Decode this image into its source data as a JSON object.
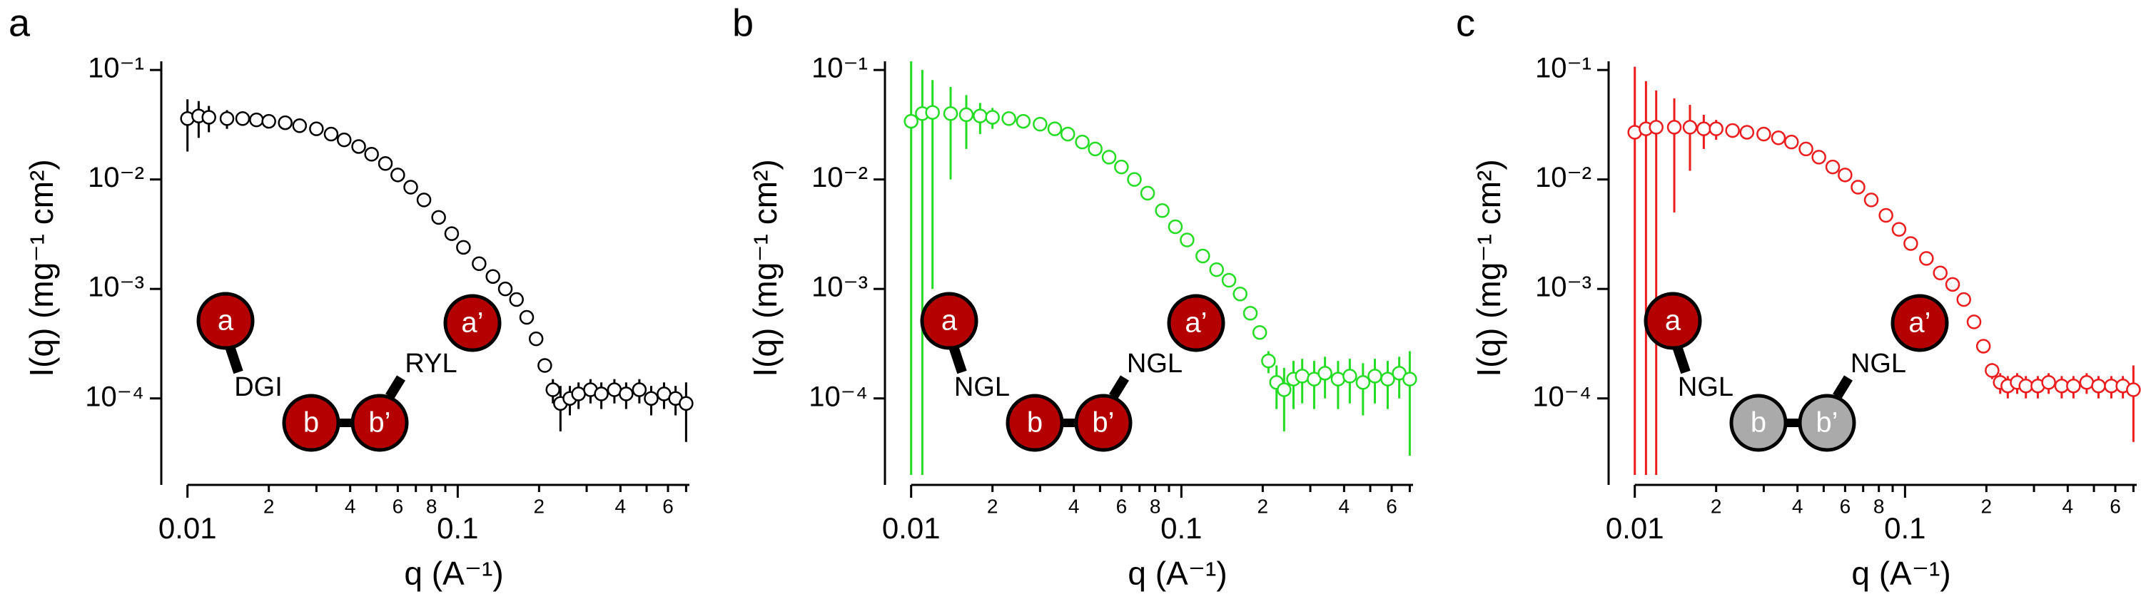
{
  "chart_data": [
    {
      "type": "scatter",
      "panel_label": "a",
      "xlabel": "q (A⁻¹)",
      "ylabel": "I(q) (mg⁻¹ cm²)",
      "color": "#000000",
      "log_x": true,
      "log_y": true,
      "x": [
        0.01,
        0.011,
        0.012,
        0.014,
        0.016,
        0.018,
        0.02,
        0.023,
        0.026,
        0.03,
        0.034,
        0.038,
        0.043,
        0.048,
        0.054,
        0.06,
        0.067,
        0.075,
        0.085,
        0.095,
        0.105,
        0.12,
        0.135,
        0.15,
        0.165,
        0.18,
        0.195,
        0.21,
        0.225,
        0.24,
        0.26,
        0.28,
        0.31,
        0.34,
        0.38,
        0.42,
        0.47,
        0.52,
        0.58,
        0.64,
        0.7
      ],
      "values": [
        0.036,
        0.038,
        0.037,
        0.036,
        0.036,
        0.035,
        0.034,
        0.033,
        0.031,
        0.029,
        0.026,
        0.023,
        0.02,
        0.017,
        0.014,
        0.011,
        0.0085,
        0.0065,
        0.0045,
        0.0032,
        0.0024,
        0.0017,
        0.0013,
        0.001,
        0.0008,
        0.00055,
        0.00035,
        0.0002,
        0.00012,
        9e-05,
        0.0001,
        0.00011,
        0.00012,
        0.00011,
        0.00012,
        0.00011,
        0.00012,
        0.0001,
        0.00011,
        0.0001,
        9e-05
      ],
      "errors": [
        0.018,
        0.014,
        0.01,
        0.007,
        0.005,
        0.003,
        0.002,
        0.001,
        0,
        0,
        0,
        0,
        0,
        0,
        0,
        0,
        0,
        0,
        0,
        0,
        0,
        0,
        0,
        0,
        0,
        0,
        0,
        2e-05,
        3e-05,
        4e-05,
        3e-05,
        3e-05,
        3e-05,
        3e-05,
        3e-05,
        3e-05,
        3e-05,
        3e-05,
        3e-05,
        3e-05,
        5e-05
      ],
      "xlim": [
        0.008,
        0.72
      ],
      "ylim": [
        2e-05,
        0.12
      ],
      "xticks": [
        0.01,
        {
          "value": 0.02,
          "label": "2"
        },
        {
          "value": 0.04,
          "label": "4"
        },
        {
          "value": 0.06,
          "label": "6"
        },
        {
          "value": 0.08,
          "label": "8"
        },
        0.1,
        {
          "value": 0.2,
          "label": "2"
        },
        {
          "value": 0.4,
          "label": "4"
        },
        {
          "value": 0.6,
          "label": "6"
        }
      ],
      "xminorticks": [
        0.03,
        0.05,
        0.07,
        0.09,
        0.3,
        0.5,
        0.7
      ],
      "yticks": [
        {
          "value": 0.1,
          "label": "10⁻¹"
        },
        {
          "value": 0.01,
          "label": "10⁻²"
        },
        {
          "value": 0.001,
          "label": "10⁻³"
        },
        {
          "value": 0.0001,
          "label": "10⁻⁴"
        }
      ],
      "annotations": {
        "domains": [
          "a",
          "b",
          "b’",
          "a’"
        ],
        "linkers": [
          "DGI",
          "RYL"
        ],
        "domain_colors": [
          "#b50000",
          "#b50000",
          "#b50000",
          "#b50000"
        ]
      }
    },
    {
      "type": "scatter",
      "panel_label": "b",
      "xlabel": "q (A⁻¹)",
      "ylabel": "I(q) (mg⁻¹ cm²)",
      "color": "#22dd22",
      "log_x": true,
      "log_y": true,
      "x": [
        0.01,
        0.011,
        0.012,
        0.014,
        0.016,
        0.018,
        0.02,
        0.023,
        0.026,
        0.03,
        0.034,
        0.038,
        0.043,
        0.048,
        0.054,
        0.06,
        0.067,
        0.075,
        0.085,
        0.095,
        0.105,
        0.12,
        0.135,
        0.15,
        0.165,
        0.18,
        0.195,
        0.21,
        0.225,
        0.24,
        0.26,
        0.28,
        0.31,
        0.34,
        0.38,
        0.42,
        0.47,
        0.52,
        0.58,
        0.64,
        0.7
      ],
      "values": [
        0.034,
        0.04,
        0.041,
        0.04,
        0.039,
        0.038,
        0.037,
        0.036,
        0.034,
        0.032,
        0.029,
        0.026,
        0.022,
        0.019,
        0.016,
        0.013,
        0.01,
        0.0075,
        0.0052,
        0.0037,
        0.0028,
        0.002,
        0.0015,
        0.0012,
        0.0009,
        0.0006,
        0.0004,
        0.00022,
        0.00014,
        0.00012,
        0.00015,
        0.00016,
        0.00015,
        0.00017,
        0.00015,
        0.00016,
        0.00014,
        0.00016,
        0.00015,
        0.00017,
        0.00015
      ],
      "errors": [
        0.1,
        0.06,
        0.04,
        0.03,
        0.02,
        0.012,
        0.008,
        0.005,
        0.003,
        0.002,
        0,
        0,
        0,
        0,
        0,
        0,
        0,
        0,
        0,
        0,
        0,
        0,
        0,
        0,
        0,
        0,
        0,
        5e-05,
        6e-05,
        7e-05,
        7e-05,
        7e-05,
        7e-05,
        7e-05,
        7e-05,
        7e-05,
        7e-05,
        7e-05,
        7e-05,
        7e-05,
        0.00012
      ],
      "xlim": [
        0.008,
        0.72
      ],
      "ylim": [
        2e-05,
        0.12
      ],
      "xticks": [
        0.01,
        {
          "value": 0.02,
          "label": "2"
        },
        {
          "value": 0.04,
          "label": "4"
        },
        {
          "value": 0.06,
          "label": "6"
        },
        {
          "value": 0.08,
          "label": "8"
        },
        0.1,
        {
          "value": 0.2,
          "label": "2"
        },
        {
          "value": 0.4,
          "label": "4"
        },
        {
          "value": 0.6,
          "label": "6"
        }
      ],
      "xminorticks": [
        0.03,
        0.05,
        0.07,
        0.09,
        0.3,
        0.5,
        0.7
      ],
      "yticks": [
        {
          "value": 0.1,
          "label": "10⁻¹"
        },
        {
          "value": 0.01,
          "label": "10⁻²"
        },
        {
          "value": 0.001,
          "label": "10⁻³"
        },
        {
          "value": 0.0001,
          "label": "10⁻⁴"
        }
      ],
      "annotations": {
        "domains": [
          "a",
          "b",
          "b’",
          "a’"
        ],
        "linkers": [
          "NGL",
          "NGL"
        ],
        "domain_colors": [
          "#b50000",
          "#b50000",
          "#b50000",
          "#b50000"
        ]
      }
    },
    {
      "type": "scatter",
      "panel_label": "c",
      "xlabel": "q (A⁻¹)",
      "ylabel": "I(q) (mg⁻¹ cm²)",
      "color": "#ee1c1c",
      "log_x": true,
      "log_y": true,
      "x": [
        0.01,
        0.011,
        0.012,
        0.014,
        0.016,
        0.018,
        0.02,
        0.023,
        0.026,
        0.03,
        0.034,
        0.038,
        0.043,
        0.048,
        0.054,
        0.06,
        0.067,
        0.075,
        0.085,
        0.095,
        0.105,
        0.12,
        0.135,
        0.15,
        0.165,
        0.18,
        0.195,
        0.21,
        0.225,
        0.24,
        0.26,
        0.28,
        0.31,
        0.34,
        0.38,
        0.42,
        0.47,
        0.52,
        0.58,
        0.64,
        0.7
      ],
      "values": [
        0.027,
        0.029,
        0.03,
        0.03,
        0.03,
        0.029,
        0.029,
        0.028,
        0.027,
        0.026,
        0.024,
        0.022,
        0.019,
        0.016,
        0.013,
        0.011,
        0.0085,
        0.0065,
        0.0047,
        0.0035,
        0.0026,
        0.0019,
        0.0014,
        0.0011,
        0.0008,
        0.0005,
        0.0003,
        0.00018,
        0.00014,
        0.00013,
        0.00014,
        0.00013,
        0.00013,
        0.00014,
        0.00013,
        0.00013,
        0.00014,
        0.00013,
        0.00013,
        0.00013,
        0.00012
      ],
      "errors": [
        0.08,
        0.05,
        0.035,
        0.025,
        0.018,
        0.01,
        0.006,
        0.004,
        0.002,
        0.001,
        0,
        0,
        0,
        0,
        0,
        0,
        0,
        0,
        0,
        0,
        0,
        0,
        0,
        0,
        0,
        0,
        0,
        3e-05,
        3e-05,
        3e-05,
        3e-05,
        3e-05,
        3e-05,
        3e-05,
        3e-05,
        3e-05,
        3e-05,
        3e-05,
        3e-05,
        3e-05,
        8e-05
      ],
      "xlim": [
        0.008,
        0.72
      ],
      "ylim": [
        2e-05,
        0.12
      ],
      "xticks": [
        0.01,
        {
          "value": 0.02,
          "label": "2"
        },
        {
          "value": 0.04,
          "label": "4"
        },
        {
          "value": 0.06,
          "label": "6"
        },
        {
          "value": 0.08,
          "label": "8"
        },
        0.1,
        {
          "value": 0.2,
          "label": "2"
        },
        {
          "value": 0.4,
          "label": "4"
        },
        {
          "value": 0.6,
          "label": "6"
        }
      ],
      "xminorticks": [
        0.03,
        0.05,
        0.07,
        0.09,
        0.3,
        0.5,
        0.7
      ],
      "yticks": [
        {
          "value": 0.1,
          "label": "10⁻¹"
        },
        {
          "value": 0.01,
          "label": "10⁻²"
        },
        {
          "value": 0.001,
          "label": "10⁻³"
        },
        {
          "value": 0.0001,
          "label": "10⁻⁴"
        }
      ],
      "annotations": {
        "domains": [
          "a",
          "b",
          "b’",
          "a’"
        ],
        "linkers": [
          "NGL",
          "NGL"
        ],
        "domain_colors": [
          "#b50000",
          "#aaaaaa",
          "#aaaaaa",
          "#b50000"
        ]
      }
    }
  ]
}
